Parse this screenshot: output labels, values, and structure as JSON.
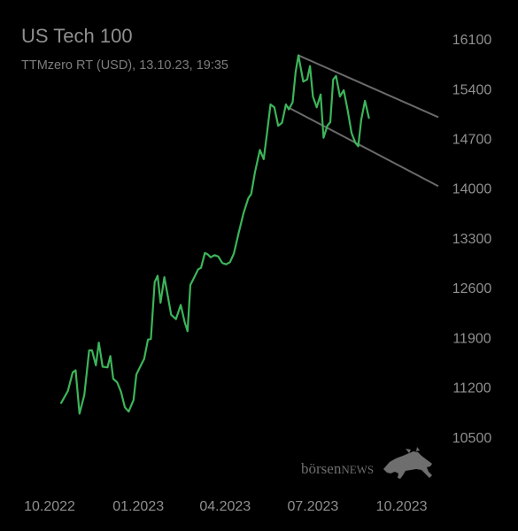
{
  "header": {
    "title": "US Tech 100",
    "subtitle": "TTMzero RT (USD), 13.10.23, 19:35"
  },
  "branding": {
    "logo_name": "börsen",
    "logo_suffix": "NEWS",
    "logo_icon": "bull-icon"
  },
  "colors": {
    "background": "#000000",
    "price_line": "#3cb55a",
    "channel_lines": "#6a6a6a",
    "text": "#8f8f8f"
  },
  "chart_data": {
    "type": "line",
    "title": "US Tech 100",
    "subtitle": "TTMzero RT (USD), 13.10.23, 19:35",
    "y_axis_position": "right",
    "ylim": [
      10200,
      16250
    ],
    "y_ticks": [
      10500,
      11200,
      11900,
      12600,
      13300,
      14000,
      14700,
      15400,
      16100
    ],
    "y_tick_labels": [
      "10500",
      "11200",
      "11900",
      "12600",
      "13300",
      "14000",
      "14700",
      "15400",
      "16100"
    ],
    "x_ticks": [
      "2022-10-01",
      "2023-01-01",
      "2023-04-01",
      "2023-07-01",
      "2023-10-01"
    ],
    "x_tick_labels": [
      "10.2022",
      "01.2023",
      "04.2023",
      "07.2023",
      "10.2023"
    ],
    "xlim": [
      "2022-10-01",
      "2023-11-08"
    ],
    "grid": false,
    "series": [
      {
        "values": [
          [
            "2022-10-13",
            10980
          ],
          [
            "2022-10-20",
            11150
          ],
          [
            "2022-10-25",
            11410
          ],
          [
            "2022-10-28",
            11440
          ],
          [
            "2022-11-01",
            10830
          ],
          [
            "2022-11-06",
            11090
          ],
          [
            "2022-11-11",
            11720
          ],
          [
            "2022-11-14",
            11720
          ],
          [
            "2022-11-18",
            11510
          ],
          [
            "2022-11-21",
            11830
          ],
          [
            "2022-11-25",
            11490
          ],
          [
            "2022-11-30",
            11480
          ],
          [
            "2022-12-03",
            11640
          ],
          [
            "2022-12-06",
            11320
          ],
          [
            "2022-12-10",
            11270
          ],
          [
            "2022-12-14",
            11140
          ],
          [
            "2022-12-18",
            10920
          ],
          [
            "2022-12-22",
            10860
          ],
          [
            "2022-12-27",
            11020
          ],
          [
            "2022-12-30",
            11380
          ],
          [
            "2023-01-04",
            11520
          ],
          [
            "2023-01-07",
            11600
          ],
          [
            "2023-01-11",
            11870
          ],
          [
            "2023-01-14",
            11880
          ],
          [
            "2023-01-18",
            12680
          ],
          [
            "2023-01-21",
            12770
          ],
          [
            "2023-01-24",
            12390
          ],
          [
            "2023-01-28",
            12750
          ],
          [
            "2023-02-01",
            12450
          ],
          [
            "2023-02-04",
            12220
          ],
          [
            "2023-02-09",
            12160
          ],
          [
            "2023-02-14",
            12360
          ],
          [
            "2023-02-18",
            12120
          ],
          [
            "2023-02-21",
            11990
          ],
          [
            "2023-02-24",
            12640
          ],
          [
            "2023-02-28",
            12750
          ],
          [
            "2023-03-04",
            12860
          ],
          [
            "2023-03-07",
            12880
          ],
          [
            "2023-03-11",
            13090
          ],
          [
            "2023-03-14",
            13070
          ],
          [
            "2023-03-17",
            13030
          ],
          [
            "2023-03-21",
            13060
          ],
          [
            "2023-03-25",
            13040
          ],
          [
            "2023-03-29",
            12950
          ],
          [
            "2023-04-02",
            12930
          ],
          [
            "2023-04-06",
            12960
          ],
          [
            "2023-04-10",
            13080
          ],
          [
            "2023-04-15",
            13370
          ],
          [
            "2023-04-20",
            13650
          ],
          [
            "2023-04-25",
            13860
          ],
          [
            "2023-04-28",
            13920
          ],
          [
            "2023-05-02",
            14230
          ],
          [
            "2023-05-07",
            14540
          ],
          [
            "2023-05-11",
            14410
          ],
          [
            "2023-05-14",
            14730
          ],
          [
            "2023-05-18",
            15180
          ],
          [
            "2023-05-22",
            15140
          ],
          [
            "2023-05-26",
            14880
          ],
          [
            "2023-05-30",
            14920
          ],
          [
            "2023-06-03",
            15180
          ],
          [
            "2023-06-06",
            15110
          ],
          [
            "2023-06-10",
            15210
          ],
          [
            "2023-06-13",
            15630
          ],
          [
            "2023-06-16",
            15870
          ],
          [
            "2023-06-21",
            15500
          ],
          [
            "2023-06-25",
            15530
          ],
          [
            "2023-06-28",
            15720
          ],
          [
            "2023-07-01",
            15290
          ],
          [
            "2023-07-05",
            15140
          ],
          [
            "2023-07-09",
            15320
          ],
          [
            "2023-07-12",
            14710
          ],
          [
            "2023-07-16",
            14880
          ],
          [
            "2023-07-19",
            14930
          ],
          [
            "2023-07-22",
            15530
          ],
          [
            "2023-07-25",
            15580
          ],
          [
            "2023-07-29",
            15290
          ],
          [
            "2023-08-02",
            15380
          ],
          [
            "2023-08-06",
            15100
          ],
          [
            "2023-08-10",
            14780
          ],
          [
            "2023-08-14",
            14640
          ],
          [
            "2023-08-17",
            14590
          ],
          [
            "2023-08-20",
            14960
          ],
          [
            "2023-08-24",
            15230
          ],
          [
            "2023-08-28",
            14990
          ]
        ]
      }
    ],
    "channel_lines": [
      {
        "from": [
          "2023-06-16",
          15870
        ],
        "to": [
          "2023-11-08",
          15000
        ]
      },
      {
        "from": [
          "2023-06-05",
          15140
        ],
        "to": [
          "2023-11-08",
          14030
        ]
      }
    ]
  }
}
